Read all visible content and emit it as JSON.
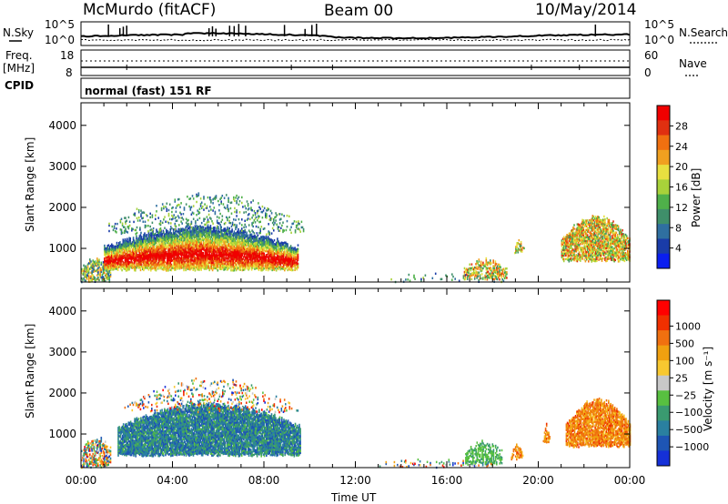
{
  "header": {
    "station": "McMurdo (fitACF)",
    "beam": "Beam 00",
    "date": "10/May/2014"
  },
  "noise_panel": {
    "left_label": "N.Sky",
    "right_label": "N.Search",
    "tick_top_left": "10^5",
    "tick_bottom_left": "10^0",
    "tick_top_right": "10^5",
    "tick_bottom_right": "10^0"
  },
  "freq_panel": {
    "left_label_line1": "Freq.",
    "left_label_line2": "[MHz]",
    "left_tick_top": "18",
    "left_tick_bottom": "8",
    "right_label": "Nave",
    "right_tick_top": "60",
    "right_tick_bottom": "0"
  },
  "cpid_panel": {
    "label": "CPID",
    "program": "normal (fast) 151 RF"
  },
  "chart_data": [
    {
      "type": "heatmap",
      "name": "power",
      "ylabel": "Slant Range [km]",
      "xlabel": "",
      "ylim": [
        180,
        4550
      ],
      "yticks": [
        1000,
        2000,
        3000,
        4000
      ],
      "x_range_hours": [
        0,
        24
      ],
      "colorbar": {
        "label": "Power [dB]",
        "range": [
          0,
          32
        ],
        "ticks": [
          "4",
          "8",
          "12",
          "16",
          "20",
          "24",
          "28"
        ],
        "colors": [
          "#0a1ef0",
          "#1a3ca8",
          "#2f6fa0",
          "#3f8f6a",
          "#4fb04a",
          "#a8d23a",
          "#e8e040",
          "#f0a020",
          "#f07010",
          "#e03010",
          "#f00000"
        ]
      }
    },
    {
      "type": "heatmap",
      "name": "velocity",
      "ylabel": "Slant Range [km]",
      "xlabel": "Time UT",
      "ylim": [
        180,
        4550
      ],
      "yticks": [
        1000,
        2000,
        3000,
        4000
      ],
      "x_range_hours": [
        0,
        24
      ],
      "xtick_labels": [
        "00:00",
        "04:00",
        "08:00",
        "12:00",
        "16:00",
        "20:00",
        "00:00"
      ],
      "colorbar": {
        "label": "Velocity [m s⁻¹]",
        "ticks": [
          "1000",
          "500",
          "100",
          "25",
          "−25",
          "−100",
          "−500",
          "−1000"
        ],
        "colors": [
          "#1530d8",
          "#1e55b4",
          "#2a80a0",
          "#3a9a70",
          "#58c040",
          "#c8c8c8",
          "#f8c830",
          "#f0a010",
          "#f07010",
          "#f03000",
          "#ff0000"
        ]
      }
    }
  ]
}
